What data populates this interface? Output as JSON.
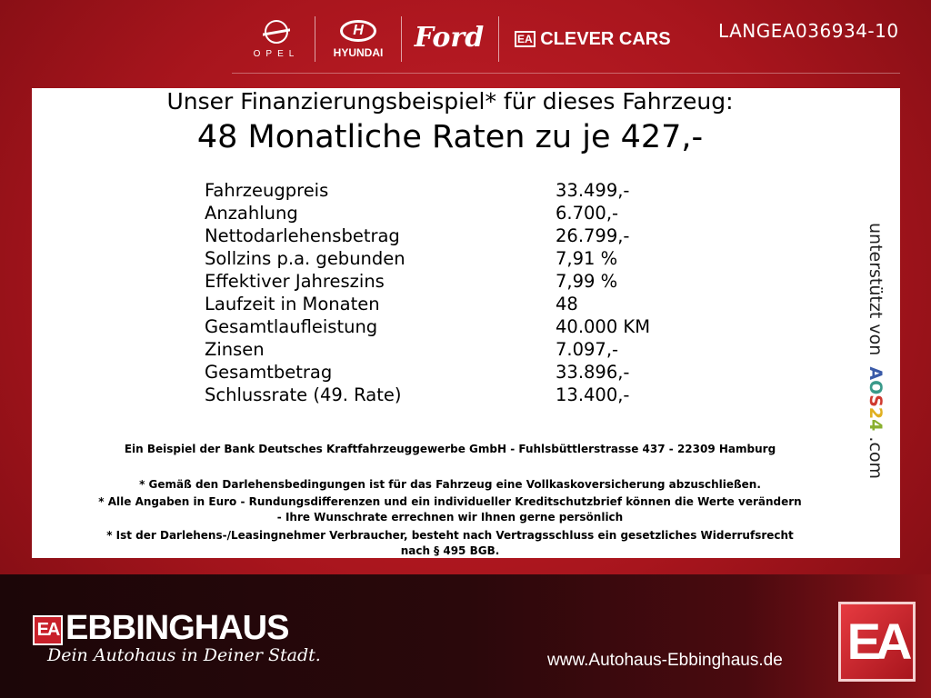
{
  "header": {
    "brands": [
      "OPEL",
      "HYUNDAI",
      "Ford",
      "CLEVER CARS"
    ],
    "clever_cars_badge": "EA",
    "reference_code": "LANGEA036934-10"
  },
  "offer": {
    "headline": "Unser Finanzierungsbeispiel* für dieses Fahrzeug:",
    "subheadline": "48 Monatliche Raten zu je 427,-",
    "rows": [
      {
        "label": "Fahrzeugpreis",
        "value": "33.499,-"
      },
      {
        "label": "Anzahlung",
        "value": "6.700,-"
      },
      {
        "label": "Nettodarlehensbetrag",
        "value": "26.799,-"
      },
      {
        "label": "Sollzins p.a. gebunden",
        "value": "7,91 %"
      },
      {
        "label": "Effektiver Jahreszins",
        "value": "7,99 %"
      },
      {
        "label": "Laufzeit in Monaten",
        "value": "48"
      },
      {
        "label": "Gesamtlaufleistung",
        "value": "40.000 KM"
      },
      {
        "label": "Zinsen",
        "value": "7.097,-"
      },
      {
        "label": "Gesamtbetrag",
        "value": "33.896,-"
      },
      {
        "label": "Schlussrate (49. Rate)",
        "value": "13.400,-"
      }
    ],
    "bank_note": "Ein Beispiel der Bank Deutsches Kraftfahrzeuggewerbe GmbH - Fuhlsbüttlerstrasse 437 - 22309 Hamburg",
    "footnotes": [
      "* Gemäß den Darlehensbedingungen ist für das Fahrzeug eine Vollkaskoversicherung abzuschließen.",
      "* Alle Angaben in Euro - Rundungsdifferenzen und ein individueller Kreditschutzbrief können die Werte verändern",
      "- Ihre Wunschrate errechnen wir Ihnen gerne persönlich",
      "* Ist der Darlehens-/Leasingnehmer Verbraucher, besteht nach Vertragsschluss ein gesetzliches Widerrufsrecht",
      "nach § 495 BGB."
    ],
    "support": {
      "prefix": "unterstützt von",
      "brand": [
        "A",
        "O",
        "S",
        "2",
        "4"
      ],
      "suffix": ".com",
      "brand_colors": [
        "#3a5aa8",
        "#3a9a8a",
        "#d03a30",
        "#e0b020",
        "#8ab030"
      ]
    }
  },
  "footer": {
    "dealer_badge": "EA",
    "dealer": "EBBINGHAUS",
    "slogan": "Dein Autohaus in Deiner Stadt.",
    "url": "www.Autohaus-Ebbinghaus.de",
    "logo": "EA"
  }
}
